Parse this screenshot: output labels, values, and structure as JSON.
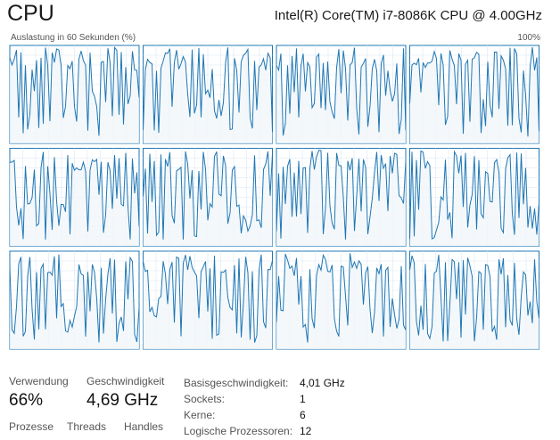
{
  "header": {
    "title": "CPU",
    "cpu_model": "Intel(R) Core(TM) i7-8086K CPU @ 4.00GHz"
  },
  "graph": {
    "axis_label": "Auslastung in 60 Sekunden (%)",
    "axis_max": "100%",
    "rows": 3,
    "cols": 4,
    "colors": {
      "line": "#1f77b4",
      "fill": "#f1f6fa",
      "grid": "#d9e8f5",
      "border": "#1f77b4"
    }
  },
  "stats": {
    "usage": {
      "label": "Verwendung",
      "value": "66%"
    },
    "speed": {
      "label": "Geschwindigkeit",
      "value": "4,69 GHz"
    },
    "processes": {
      "label": "Prozesse"
    },
    "threads": {
      "label": "Threads"
    },
    "handles": {
      "label": "Handles"
    }
  },
  "info": [
    {
      "label": "Basisgeschwindigkeit:",
      "value": "4,01 GHz"
    },
    {
      "label": "Sockets:",
      "value": "1"
    },
    {
      "label": "Kerne:",
      "value": "6"
    },
    {
      "label": "Logische Prozessoren:",
      "value": "12"
    }
  ]
}
